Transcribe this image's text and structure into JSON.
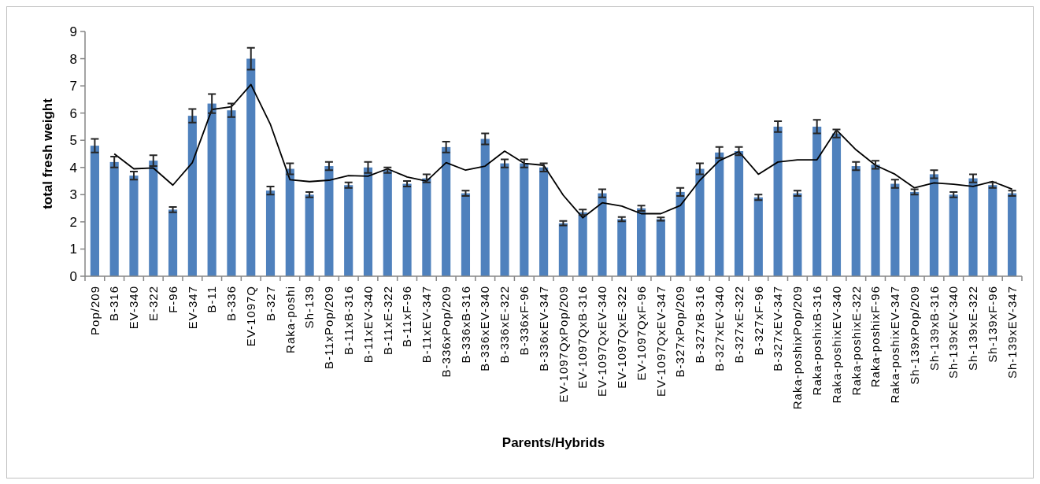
{
  "chart_data": {
    "type": "bar",
    "xlabel": "Parents/Hybrids",
    "ylabel": "total fresh  weight",
    "categories": [
      "Pop/209",
      "B-316",
      "EV-340",
      "E-322",
      "F-96",
      "EV-347",
      "B-11",
      "B-336",
      "EV-1097Q",
      "B-327",
      "Raka-poshi",
      "Sh-139",
      "B-11xPop/209",
      "B-11xB-316",
      "B-11xEV-340",
      "B-11xE-322",
      "B-11xF-96",
      "B-11xEV-347",
      "B-336xPop/209",
      "B-336xB-316",
      "B-336xEV-340",
      "B-336xE-322",
      "B-336xF-96",
      "B-336xEV-347",
      "EV-1097QxPop/209",
      "EV-1097QxB-316",
      "EV-1097QxEV-340",
      "EV-1097QxE-322",
      "EV-1097QxF-96",
      "EV-1097QxEV-347",
      "B-327xPop/209",
      "B-327xB-316",
      "B-327xEV-340",
      "B-327xE-322",
      "B-327xF-96",
      "B-327xEV-347",
      "Raka-poshixPop/209",
      "Raka-poshixB-316",
      "Raka-poshixEV-340",
      "Raka-poshixE-322",
      "Raka-poshixF-96",
      "Raka-poshixEV-347",
      "Sh-139xPop/209",
      "Sh-139xB-316",
      "Sh-139xEV-340",
      "Sh-139xE-322",
      "Sh-139xF-96",
      "Sh-139xEV-347"
    ],
    "series": [
      {
        "color": "#4f81bd",
        "values": [
          4.8,
          4.2,
          3.7,
          4.25,
          2.45,
          5.9,
          6.35,
          6.1,
          8.0,
          3.15,
          3.95,
          3.0,
          4.05,
          3.35,
          4.0,
          3.9,
          3.4,
          3.6,
          4.75,
          3.05,
          5.05,
          4.15,
          4.15,
          4.0,
          1.95,
          2.35,
          3.05,
          2.1,
          2.5,
          2.1,
          3.1,
          3.95,
          4.55,
          4.6,
          2.9,
          5.5,
          3.05,
          5.5,
          5.25,
          4.05,
          4.1,
          3.4,
          3.1,
          3.75,
          3.0,
          3.6,
          3.35,
          3.05
        ],
        "errors": [
          0.25,
          0.2,
          0.15,
          0.2,
          0.1,
          0.25,
          0.35,
          0.25,
          0.4,
          0.15,
          0.2,
          0.1,
          0.15,
          0.1,
          0.2,
          0.1,
          0.1,
          0.15,
          0.2,
          0.1,
          0.2,
          0.15,
          0.15,
          0.15,
          0.08,
          0.1,
          0.15,
          0.08,
          0.1,
          0.06,
          0.15,
          0.2,
          0.2,
          0.15,
          0.1,
          0.2,
          0.1,
          0.25,
          0.15,
          0.15,
          0.15,
          0.15,
          0.1,
          0.15,
          0.1,
          0.15,
          0.1,
          0.1
        ]
      },
      {
        "type": "line",
        "color": "#000000",
        "values": [
          null,
          4.5,
          3.95,
          3.98,
          3.35,
          4.18,
          6.13,
          6.23,
          7.05,
          5.58,
          3.55,
          3.48,
          3.53,
          3.7,
          3.68,
          3.95,
          3.65,
          3.5,
          4.18,
          3.9,
          4.05,
          4.6,
          4.15,
          4.08,
          2.98,
          2.15,
          2.7,
          2.58,
          2.3,
          2.3,
          2.6,
          3.53,
          4.25,
          4.58,
          3.75,
          4.2,
          4.28,
          4.28,
          5.38,
          4.65,
          4.08,
          3.75,
          3.25,
          3.43,
          3.38,
          3.3,
          3.48,
          3.2
        ]
      }
    ],
    "ylim": [
      0,
      9
    ],
    "yticks": [
      0,
      1,
      2,
      3,
      4,
      5,
      6,
      7,
      8,
      9
    ],
    "marker": "none",
    "line_style": "solid"
  }
}
